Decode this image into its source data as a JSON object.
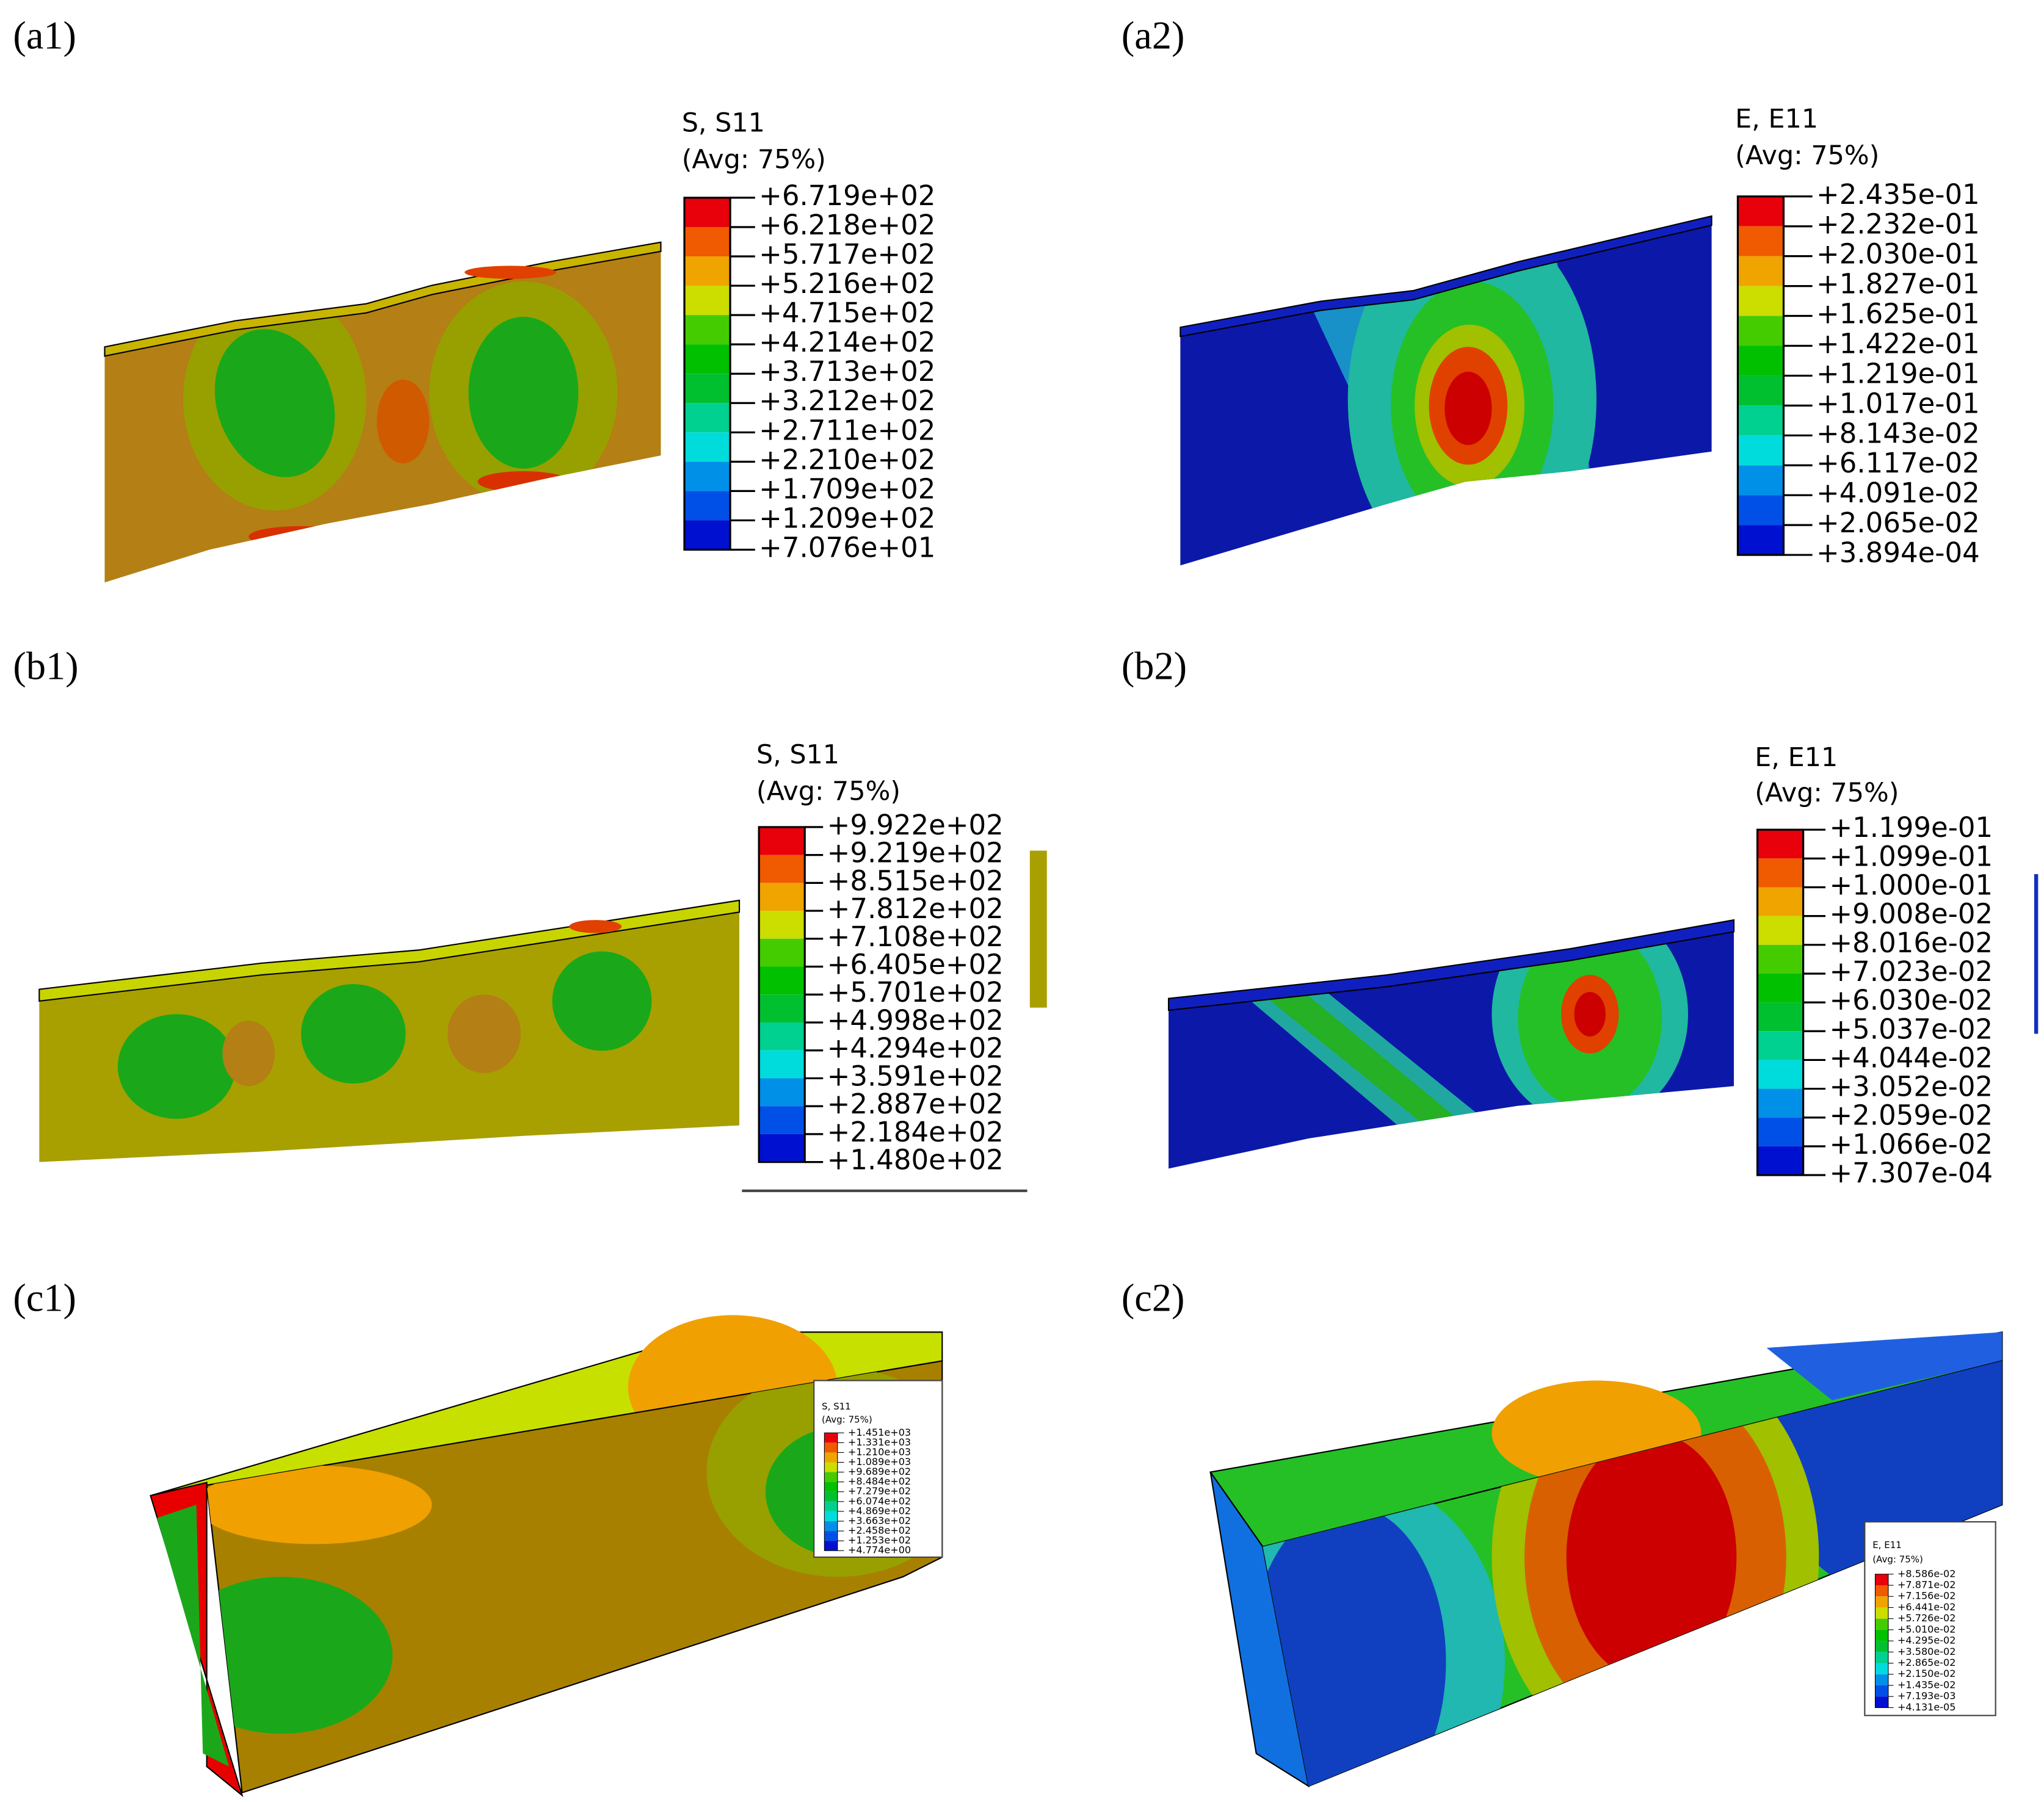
{
  "panels": [
    {
      "label": "(a1)",
      "legend": {
        "title": "S, S11",
        "subtitle": "(Avg: 75%)",
        "values": [
          "+6.719e+02",
          "+6.218e+02",
          "+5.717e+02",
          "+5.216e+02",
          "+4.715e+02",
          "+4.214e+02",
          "+3.713e+02",
          "+3.212e+02",
          "+2.711e+02",
          "+2.210e+02",
          "+1.709e+02",
          "+1.209e+02",
          "+7.076e+01"
        ]
      }
    },
    {
      "label": "(a2)",
      "legend": {
        "title": "E, E11",
        "subtitle": "(Avg: 75%)",
        "values": [
          "+2.435e-01",
          "+2.232e-01",
          "+2.030e-01",
          "+1.827e-01",
          "+1.625e-01",
          "+1.422e-01",
          "+1.219e-01",
          "+1.017e-01",
          "+8.143e-02",
          "+6.117e-02",
          "+4.091e-02",
          "+2.065e-02",
          "+3.894e-04"
        ]
      }
    },
    {
      "label": "(b1)",
      "legend": {
        "title": "S, S11",
        "subtitle": "(Avg: 75%)",
        "values": [
          "+9.922e+02",
          "+9.219e+02",
          "+8.515e+02",
          "+7.812e+02",
          "+7.108e+02",
          "+6.405e+02",
          "+5.701e+02",
          "+4.998e+02",
          "+4.294e+02",
          "+3.591e+02",
          "+2.887e+02",
          "+2.184e+02",
          "+1.480e+02"
        ]
      }
    },
    {
      "label": "(b2)",
      "legend": {
        "title": "E, E11",
        "subtitle": "(Avg: 75%)",
        "values": [
          "+1.199e-01",
          "+1.099e-01",
          "+1.000e-01",
          "+9.008e-02",
          "+8.016e-02",
          "+7.023e-02",
          "+6.030e-02",
          "+5.037e-02",
          "+4.044e-02",
          "+3.052e-02",
          "+2.059e-02",
          "+1.066e-02",
          "+7.307e-04"
        ]
      }
    },
    {
      "label": "(c1)",
      "legend": {
        "title": "S, S11",
        "subtitle": "(Avg: 75%)",
        "values": [
          "+1.451e+03",
          "+1.331e+03",
          "+1.210e+03",
          "+1.089e+03",
          "+9.689e+02",
          "+8.484e+02",
          "+7.279e+02",
          "+6.074e+02",
          "+4.869e+02",
          "+3.663e+02",
          "+2.458e+02",
          "+1.253e+02",
          "+4.774e+00"
        ]
      }
    },
    {
      "label": "(c2)",
      "legend": {
        "title": "E, E11",
        "subtitle": "(Avg: 75%)",
        "values": [
          "+8.586e-02",
          "+7.871e-02",
          "+7.156e-02",
          "+6.441e-02",
          "+5.726e-02",
          "+5.010e-02",
          "+4.295e-02",
          "+3.580e-02",
          "+2.865e-02",
          "+2.150e-02",
          "+1.435e-02",
          "+7.193e-03",
          "+4.131e-05"
        ]
      }
    }
  ]
}
